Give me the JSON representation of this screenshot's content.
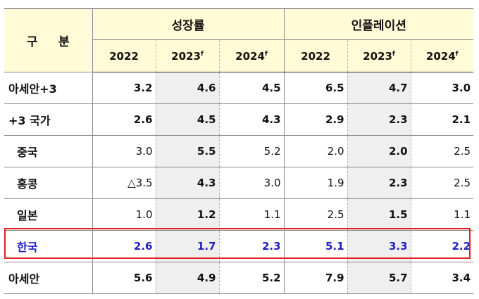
{
  "header": {
    "corner": [
      "구",
      "분"
    ],
    "group_growth": "성장률",
    "group_inflation": "인플레이션",
    "years": [
      "2022",
      "2023",
      "2024"
    ],
    "forecast_mark": "f"
  },
  "rows": [
    {
      "label": "아세안+3",
      "v": [
        "3.2",
        "4.6",
        "4.5",
        "6.5",
        "4.7",
        "3.0"
      ]
    },
    {
      "label": "+3 국가",
      "v": [
        "2.6",
        "4.5",
        "4.3",
        "2.9",
        "2.3",
        "2.1"
      ]
    },
    {
      "label": "중국",
      "v": [
        "3.0",
        "5.5",
        "5.2",
        "2.0",
        "2.0",
        "2.5"
      ]
    },
    {
      "label": "홍콩",
      "v": [
        "△3.5",
        "4.3",
        "3.0",
        "1.9",
        "2.3",
        "2.5"
      ]
    },
    {
      "label": "일본",
      "v": [
        "1.0",
        "1.2",
        "1.1",
        "2.5",
        "1.5",
        "1.1"
      ]
    },
    {
      "label": "한국",
      "v": [
        "2.6",
        "1.7",
        "2.3",
        "5.1",
        "3.3",
        "2.2"
      ]
    },
    {
      "label": "아세안",
      "v": [
        "5.6",
        "4.9",
        "5.2",
        "7.9",
        "5.7",
        "3.4"
      ]
    }
  ],
  "colors": {
    "highlight_border": "#e02020",
    "highlight_text": "#1f1fbf",
    "header_bg": "#fffbd6"
  }
}
